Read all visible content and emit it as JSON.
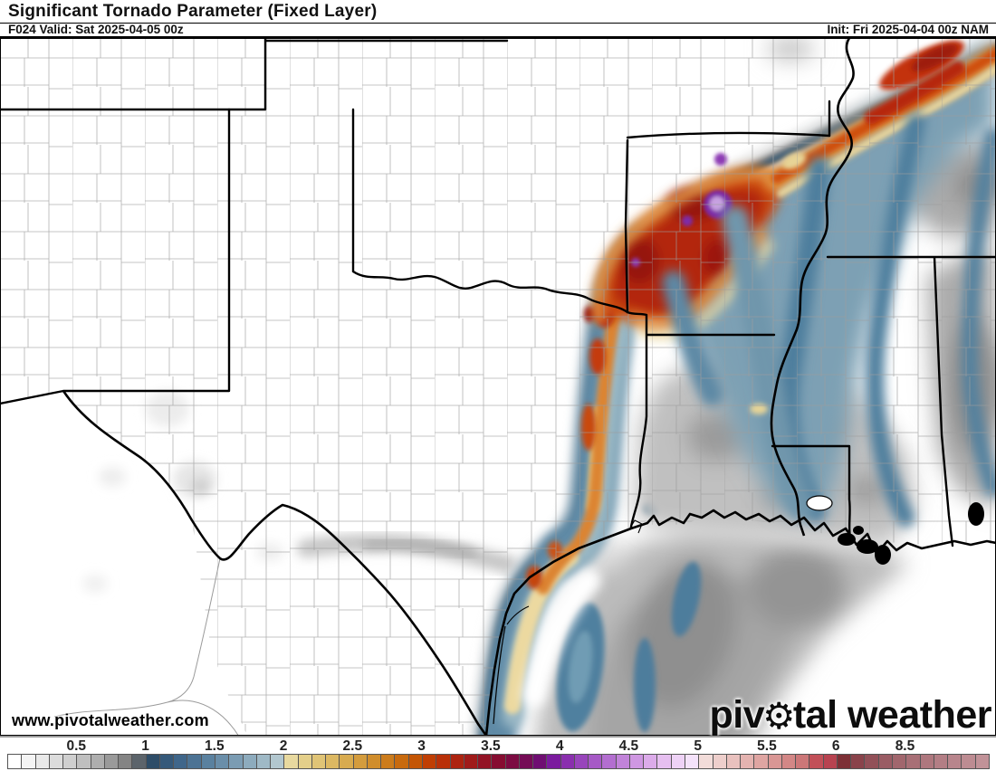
{
  "header": {
    "title": "Significant Tornado Parameter (Fixed Layer)",
    "left_meta": "F024 Valid: Sat 2025-04-05 00z",
    "right_meta": "Init: Fri 2025-04-04 00z NAM"
  },
  "watermark": {
    "website": "www.pivotalweather.com",
    "logo_pre": "piv",
    "gear_glyph": "⚙",
    "logo_post": "tal weather"
  },
  "colorbar": {
    "ticks": [
      {
        "label": "0.5",
        "cell": 5
      },
      {
        "label": "1",
        "cell": 10
      },
      {
        "label": "1.5",
        "cell": 15
      },
      {
        "label": "2",
        "cell": 20
      },
      {
        "label": "2.5",
        "cell": 25
      },
      {
        "label": "3",
        "cell": 30
      },
      {
        "label": "3.5",
        "cell": 35
      },
      {
        "label": "4",
        "cell": 40
      },
      {
        "label": "4.5",
        "cell": 45
      },
      {
        "label": "5",
        "cell": 50
      },
      {
        "label": "5.5",
        "cell": 55
      },
      {
        "label": "6",
        "cell": 60
      },
      {
        "label": "8.5",
        "cell": 65
      }
    ],
    "cells": [
      "#ffffff",
      "#f4f4f4",
      "#e9e9e9",
      "#dcdcdc",
      "#cfcfcf",
      "#bfbfbf",
      "#aeaeae",
      "#9a9a9a",
      "#848484",
      "#5c646b",
      "#2e4d68",
      "#35597a",
      "#3f668a",
      "#4c7394",
      "#5a819f",
      "#6a8ea9",
      "#7b9cb3",
      "#8dabbd",
      "#9fb9c6",
      "#b2c7cf",
      "#e8d99f",
      "#e4cf8a",
      "#e0c476",
      "#dcb862",
      "#d8ab4f",
      "#d49c3d",
      "#d08d2c",
      "#cc7c1c",
      "#c86a0e",
      "#c45504",
      "#c03e03",
      "#b93008",
      "#ad2410",
      "#a01b1a",
      "#931325",
      "#860d31",
      "#7c0b42",
      "#750c56",
      "#6f0e72",
      "#7b1b9e",
      "#8a2fae",
      "#9845bb",
      "#a659c6",
      "#b36ed0",
      "#c183d9",
      "#cf97e2",
      "#dcabea",
      "#e6bff0",
      "#eed2f6",
      "#f4e2fa",
      "#f2dcd9",
      "#eecfcc",
      "#e9c1be",
      "#e4b3b0",
      "#dfa5a2",
      "#d99694",
      "#d38786",
      "#cc7778",
      "#c25058",
      "#b84350",
      "#7d3036",
      "#8a434b",
      "#925058",
      "#9a5c64",
      "#a1666d",
      "#a86f76",
      "#ae777e",
      "#b37e85",
      "#b8858c",
      "#bd8c92",
      "#c19298"
    ]
  }
}
